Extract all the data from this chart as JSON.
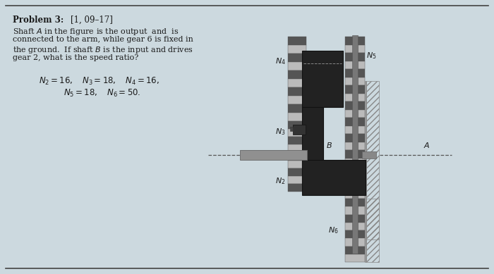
{
  "bg_color": "#ccd9df",
  "line_color": "#444444",
  "text_color": "#1a1a1a",
  "dark_color": "#222222",
  "gear_dark": "#555555",
  "gear_light": "#bbbbbb",
  "gear_mid": "#888888",
  "shaft_color": "#888888",
  "hatch_ec": "#777777",
  "title_bold": "Problem 3:",
  "title_ref": " [1, 09–17]",
  "body_lines": [
    "Shaft $A$ in the figure is the output  and  is",
    "connected to the arm, while gear 6 is fixed in",
    "the ground.  If shaft $B$ is the input and drives",
    "gear 2, what is the speed ratio?"
  ],
  "eq_line1": "$N_2 = 16, \\quad N_3 = 18, \\quad N_4 = 16,$",
  "eq_line2": "$N_5 = 18, \\quad N_6 = 50.$"
}
